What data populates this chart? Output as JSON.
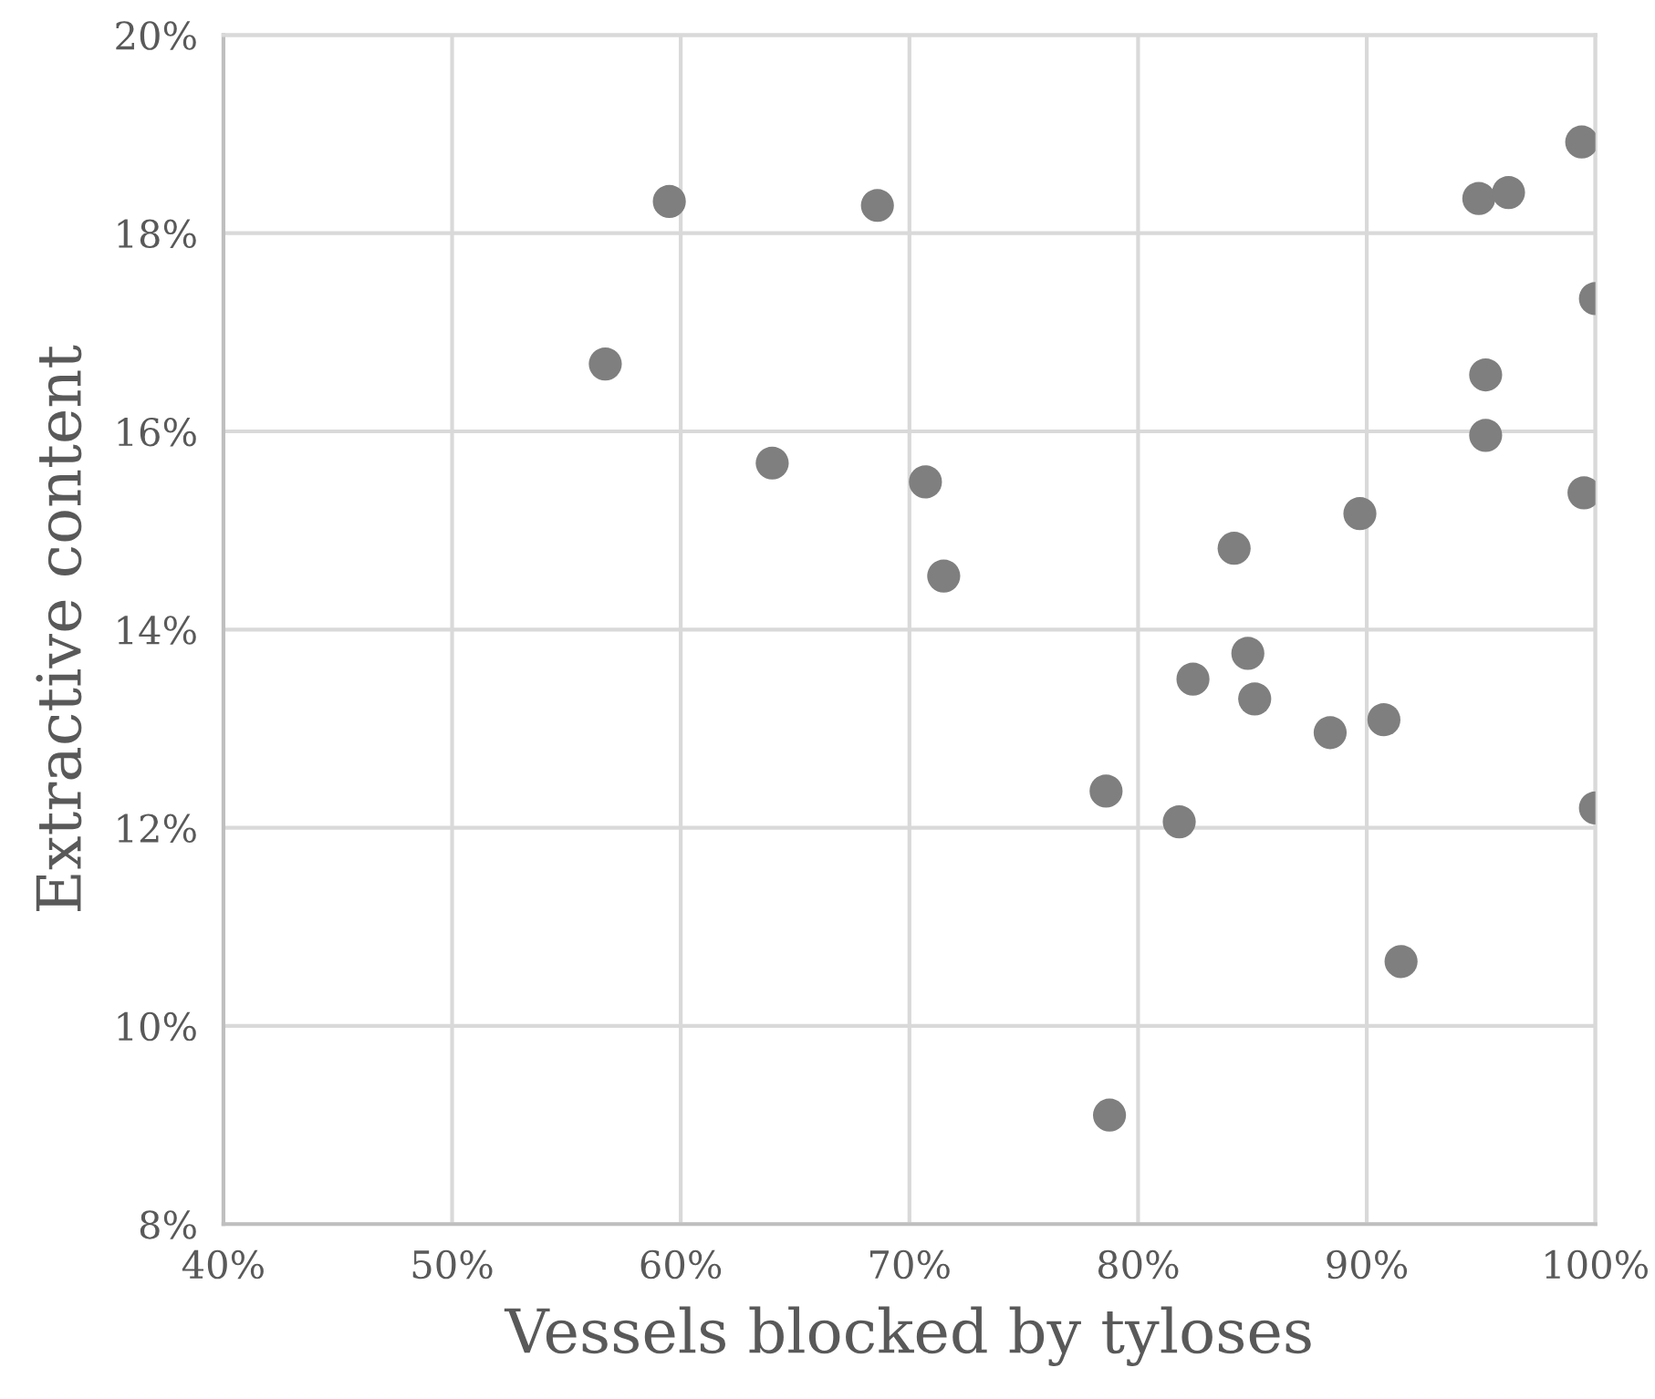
{
  "chart_data": {
    "type": "scatter",
    "xlabel": "Vessels blocked by tyloses",
    "ylabel": "Extractive content",
    "x": [
      59.5,
      68.6,
      56.7,
      64.0,
      70.7,
      71.5,
      99.4,
      94.9,
      96.2,
      100,
      95.2,
      95.2,
      99.5,
      89.7,
      84.2,
      84.8,
      82.4,
      85.1,
      88.4,
      90.75,
      78.6,
      81.8,
      100,
      91.5,
      78.75
    ],
    "series": [
      {
        "color": "#7f7f7f",
        "values": [
          18.32,
          18.28,
          16.68,
          15.68,
          15.49,
          14.54,
          18.92,
          18.35,
          18.41,
          17.34,
          16.57,
          15.96,
          15.38,
          15.17,
          14.82,
          13.76,
          13.5,
          13.3,
          12.96,
          13.09,
          12.37,
          12.06,
          12.2,
          10.65,
          9.1
        ]
      }
    ],
    "xlim": [
      40,
      100
    ],
    "ylim": [
      8,
      20
    ],
    "xticks": [
      {
        "value": 40,
        "label": "40%"
      },
      {
        "value": 50,
        "label": "50%"
      },
      {
        "value": 60,
        "label": "60%"
      },
      {
        "value": 70,
        "label": "70%"
      },
      {
        "value": 80,
        "label": "80%"
      },
      {
        "value": 90,
        "label": "90%"
      },
      {
        "value": 100,
        "label": "100%"
      }
    ],
    "yticks": [
      {
        "value": 8,
        "label": "8%"
      },
      {
        "value": 10,
        "label": "10%"
      },
      {
        "value": 12,
        "label": "12%"
      },
      {
        "value": 14,
        "label": "14%"
      },
      {
        "value": 16,
        "label": "16%"
      },
      {
        "value": 18,
        "label": "18%"
      },
      {
        "value": 20,
        "label": "20%"
      }
    ],
    "grid": true,
    "marker": "circle"
  }
}
